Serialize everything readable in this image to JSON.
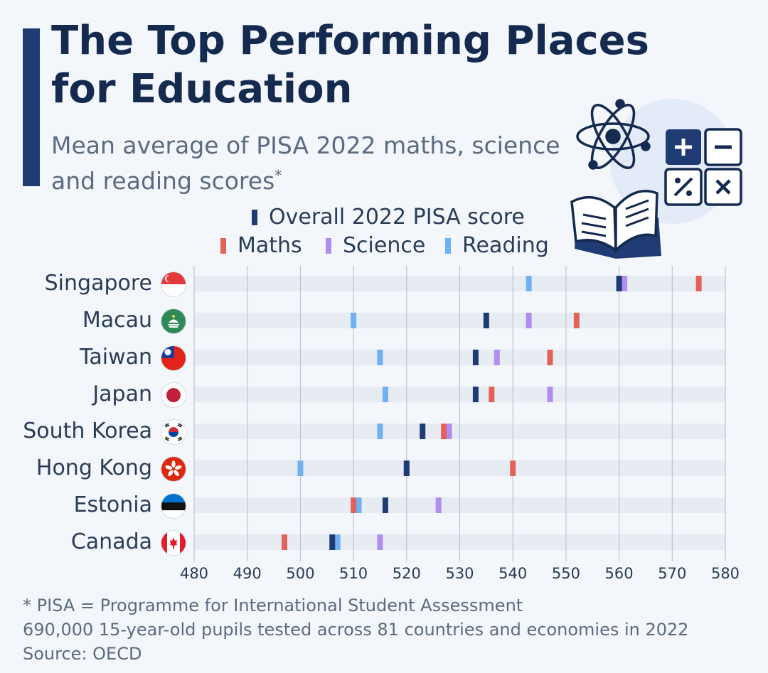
{
  "title": "The Top Performing Places for Education",
  "subtitle": "Mean average of PISA 2022 maths, science and reading scores",
  "subtitle_mark": "*",
  "legend": {
    "overall": "Overall 2022 PISA score",
    "maths": "Maths",
    "science": "Science",
    "reading": "Reading"
  },
  "colors": {
    "overall": "#1f3b73",
    "maths": "#e2625a",
    "science": "#b28df0",
    "reading": "#6fb1f2",
    "band": "#e7ecf3",
    "grid": "#b5bdc9"
  },
  "icons": [
    "atom-icon",
    "calculator-icon",
    "open-book-icon"
  ],
  "chart_data": {
    "type": "scatter",
    "title": "The Top Performing Places for Education",
    "xlim": [
      480,
      580
    ],
    "xticks": [
      480,
      490,
      500,
      510,
      520,
      530,
      540,
      550,
      560,
      570,
      580
    ],
    "categories": [
      "Singapore",
      "Macau",
      "Taiwan",
      "Japan",
      "South Korea",
      "Hong Kong",
      "Estonia",
      "Canada"
    ],
    "series": [
      {
        "key": "reading",
        "name": "Reading",
        "values": [
          543,
          510,
          515,
          516,
          515,
          500,
          511,
          507
        ]
      },
      {
        "key": "science",
        "name": "Science",
        "values": [
          561,
          543,
          537,
          547,
          528,
          520,
          526,
          515
        ]
      },
      {
        "key": "maths",
        "name": "Maths",
        "values": [
          575,
          552,
          547,
          536,
          527,
          540,
          510,
          497
        ]
      },
      {
        "key": "overall",
        "name": "Overall 2022 PISA score",
        "values": [
          560,
          535,
          533,
          533,
          523,
          520,
          516,
          506
        ]
      }
    ],
    "legend_position": "top"
  },
  "footnotes": [
    "* PISA = Programme for International Student Assessment",
    "690,000 15-year-old pupils tested across 81 countries and economies in 2022",
    "Source: OECD"
  ]
}
